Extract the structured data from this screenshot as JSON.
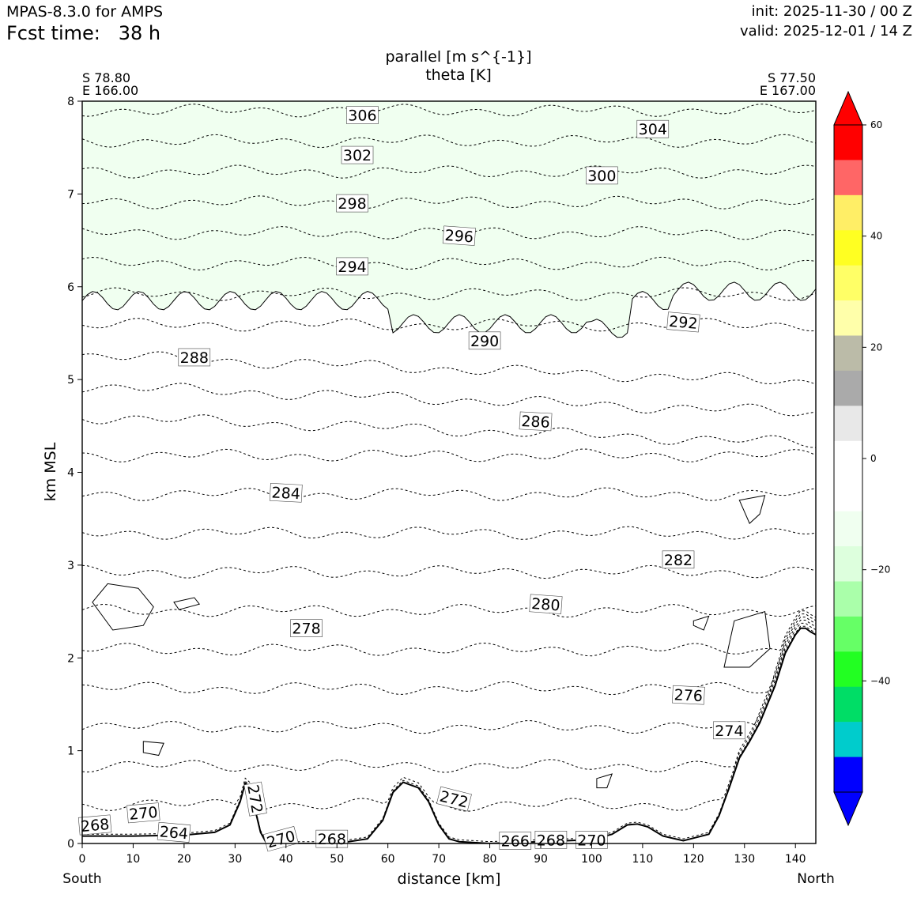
{
  "header": {
    "model": "MPAS-8.3.0 for AMPS",
    "fcst_label": "Fcst time:",
    "fcst_value": "38 h",
    "init": "init: 2025-11-30 / 00 Z",
    "valid": "valid: 2025-12-01 / 14 Z"
  },
  "chart_data": {
    "type": "cross-section",
    "title_line1": "parallel [m s^{-1}]",
    "title_line2": "theta [K]",
    "xlabel": "distance [km]",
    "ylabel": "km MSL",
    "xlim": [
      0,
      144
    ],
    "ylim": [
      0,
      8
    ],
    "x_ticks": [
      0,
      10,
      20,
      30,
      40,
      50,
      60,
      70,
      80,
      90,
      100,
      110,
      120,
      130,
      140
    ],
    "y_ticks": [
      0,
      1,
      2,
      3,
      4,
      5,
      6,
      7,
      8
    ],
    "left_endpoint": {
      "lat": "S 78.80",
      "lon": "E 166.00",
      "label": "South"
    },
    "right_endpoint": {
      "lat": "S 77.50",
      "lon": "E 167.00",
      "label": "North"
    },
    "colorbar": {
      "ticks": [
        60,
        40,
        20,
        0,
        -20,
        -40
      ],
      "tick_labels": [
        "60",
        "40",
        "20",
        "0",
        "−20",
        "−40"
      ],
      "min": -60,
      "max": 60,
      "colors": [
        "#0000ff",
        "#00cccc",
        "#00dd66",
        "#22ff22",
        "#66ff66",
        "#aaffaa",
        "#ddffdd",
        "#f0fff0",
        "#ffffff",
        "#ffffff",
        "#e8e8e8",
        "#aaaaaa",
        "#bbbba8",
        "#ffffaa",
        "#ffff66",
        "#ffff22",
        "#ffee66",
        "#ff6666",
        "#ff0000"
      ]
    },
    "theta_contours": [
      {
        "label": "306",
        "label_x": 55,
        "label_z": 7.85,
        "rot": 0
      },
      {
        "label": "304",
        "label_x": 112,
        "label_z": 7.7,
        "rot": 0
      },
      {
        "label": "302",
        "label_x": 54,
        "label_z": 7.42,
        "rot": 0
      },
      {
        "label": "300",
        "label_x": 102,
        "label_z": 7.2,
        "rot": 0
      },
      {
        "label": "298",
        "label_x": 53,
        "label_z": 6.9,
        "rot": 0
      },
      {
        "label": "296",
        "label_x": 74,
        "label_z": 6.55,
        "rot": 4
      },
      {
        "label": "294",
        "label_x": 53,
        "label_z": 6.22,
        "rot": 0
      },
      {
        "label": "292",
        "label_x": 118,
        "label_z": 5.62,
        "rot": 5
      },
      {
        "label": "290",
        "label_x": 79,
        "label_z": 5.42,
        "rot": 0
      },
      {
        "label": "288",
        "label_x": 22,
        "label_z": 5.24,
        "rot": 0
      },
      {
        "label": "286",
        "label_x": 89,
        "label_z": 4.55,
        "rot": 3
      },
      {
        "label": "284",
        "label_x": 40,
        "label_z": 3.78,
        "rot": 3
      },
      {
        "label": "282",
        "label_x": 117,
        "label_z": 3.06,
        "rot": 0
      },
      {
        "label": "280",
        "label_x": 91,
        "label_z": 2.58,
        "rot": 4
      },
      {
        "label": "278",
        "label_x": 44,
        "label_z": 2.32,
        "rot": 0
      },
      {
        "label": "276",
        "label_x": 119,
        "label_z": 1.6,
        "rot": 3
      },
      {
        "label": "274",
        "label_x": 127,
        "label_z": 1.22,
        "rot": 0
      },
      {
        "label": "272",
        "label_x": 73,
        "label_z": 0.48,
        "rot": 14
      },
      {
        "label": "272",
        "label_x": 34,
        "label_z": 0.48,
        "rot": 80
      },
      {
        "label": "270",
        "label_x": 12,
        "label_z": 0.33,
        "rot": -5
      },
      {
        "label": "268",
        "label_x": 2.5,
        "label_z": 0.2,
        "rot": -5
      },
      {
        "label": "264",
        "label_x": 18,
        "label_z": 0.12,
        "rot": 5
      },
      {
        "label": "270",
        "label_x": 39,
        "label_z": 0.05,
        "rot": -15
      },
      {
        "label": "268",
        "label_x": 49,
        "label_z": 0.05,
        "rot": 0
      },
      {
        "label": "266",
        "label_x": 85,
        "label_z": 0.03,
        "rot": 0
      },
      {
        "label": "268",
        "label_x": 92,
        "label_z": 0.04,
        "rot": 0
      },
      {
        "label": "270",
        "label_x": 100,
        "label_z": 0.04,
        "rot": 0
      }
    ],
    "terrain": {
      "x": [
        0,
        10,
        20,
        26,
        29,
        31,
        32,
        33,
        34,
        35,
        36,
        40,
        50,
        56,
        59,
        61,
        63,
        66,
        68,
        70,
        72,
        74,
        80,
        90,
        100,
        104,
        107,
        109,
        111,
        114,
        118,
        123,
        125,
        127,
        129,
        131,
        133,
        136,
        138,
        140,
        141,
        142,
        143,
        144
      ],
      "z": [
        0.08,
        0.08,
        0.09,
        0.12,
        0.2,
        0.45,
        0.65,
        0.6,
        0.35,
        0.12,
        0.02,
        0.0,
        0.0,
        0.05,
        0.25,
        0.55,
        0.66,
        0.6,
        0.45,
        0.2,
        0.05,
        0.02,
        0.0,
        0.02,
        0.04,
        0.1,
        0.2,
        0.21,
        0.18,
        0.08,
        0.03,
        0.1,
        0.3,
        0.6,
        0.92,
        1.1,
        1.3,
        1.7,
        2.05,
        2.25,
        2.32,
        2.32,
        2.28,
        2.25
      ]
    }
  }
}
